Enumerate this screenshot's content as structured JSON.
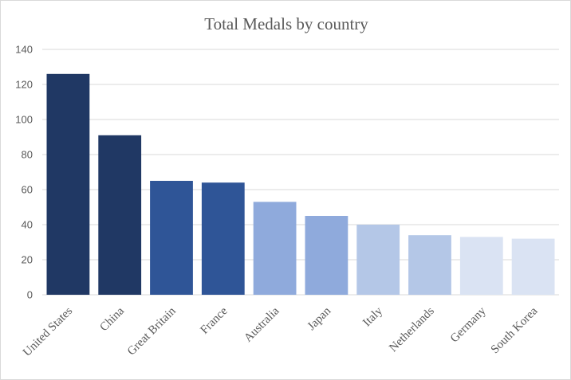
{
  "chart_data": {
    "type": "bar",
    "title": "Total Medals by country",
    "xlabel": "",
    "ylabel": "",
    "ylim": [
      0,
      140
    ],
    "yticks": [
      0,
      20,
      40,
      60,
      80,
      100,
      120,
      140
    ],
    "grid": true,
    "legend": "none",
    "categories": [
      "United States",
      "China",
      "Great Britain",
      "France",
      "Australia",
      "Japan",
      "Italy",
      "Netherlands",
      "Germany",
      "South Korea"
    ],
    "values": [
      126,
      91,
      65,
      64,
      53,
      45,
      40,
      34,
      33,
      32
    ],
    "colors": [
      "#203864",
      "#203864",
      "#2f5597",
      "#2f5597",
      "#8faadc",
      "#8faadc",
      "#b4c7e7",
      "#b4c7e7",
      "#dae3f3",
      "#dae3f3"
    ]
  }
}
